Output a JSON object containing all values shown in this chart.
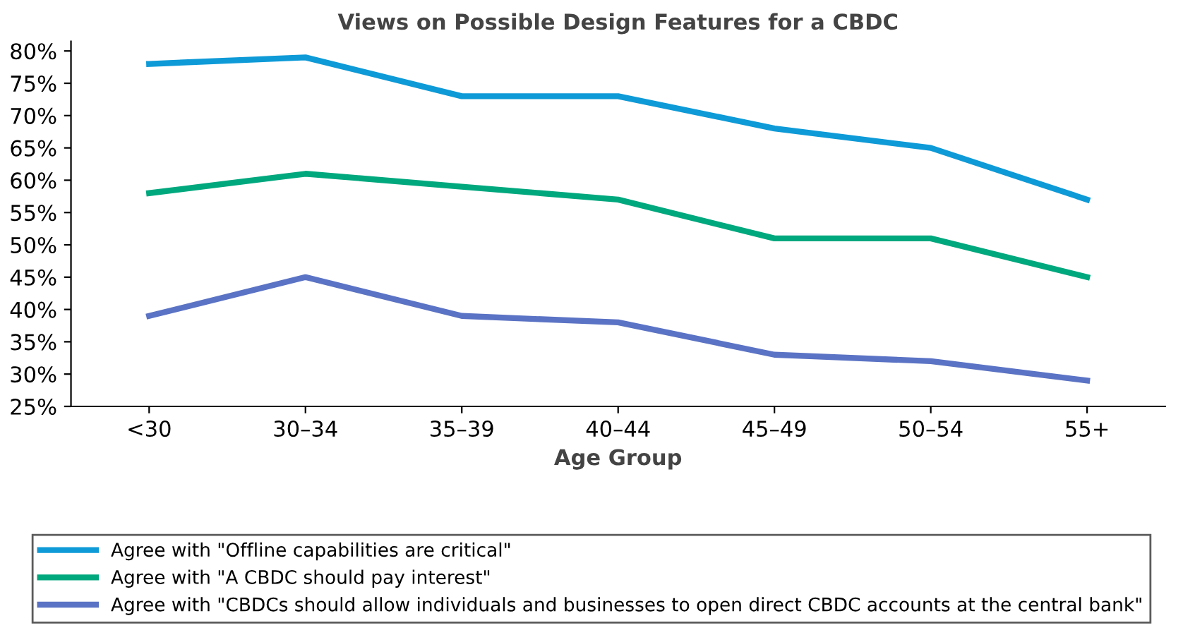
{
  "chart_data": {
    "type": "line",
    "title": "Views on Possible Design Features for a CBDC",
    "xlabel": "Age Group",
    "categories": [
      "<30",
      "30–34",
      "35–39",
      "40–44",
      "45–49",
      "50–54",
      "55+"
    ],
    "series": [
      {
        "name": "Agree with \"Offline capabilities are critical\"",
        "color": "#0e9ad7",
        "values": [
          78,
          79,
          73,
          73,
          68,
          65,
          57
        ]
      },
      {
        "name": "Agree with \"A CBDC should pay interest\"",
        "color": "#00a87e",
        "values": [
          58,
          61,
          59,
          57,
          51,
          51,
          45
        ]
      },
      {
        "name": "Agree with \"CBDCs should allow individuals and businesses to open direct CBDC accounts at the central bank\"",
        "color": "#5b73c4",
        "values": [
          39,
          45,
          39,
          38,
          33,
          32,
          29
        ]
      }
    ],
    "ylim": [
      25,
      81.5
    ],
    "yticks": [
      {
        "value": 25,
        "label": "25%"
      },
      {
        "value": 30,
        "label": "30%"
      },
      {
        "value": 35,
        "label": "35%"
      },
      {
        "value": 40,
        "label": "40%"
      },
      {
        "value": 45,
        "label": "45%"
      },
      {
        "value": 50,
        "label": "50%"
      },
      {
        "value": 55,
        "label": "55%"
      },
      {
        "value": 60,
        "label": "60%"
      },
      {
        "value": 65,
        "label": "65%"
      },
      {
        "value": 70,
        "label": "70%"
      },
      {
        "value": 75,
        "label": "75%"
      },
      {
        "value": 80,
        "label": "80%"
      }
    ],
    "grid": false,
    "legend": "bottom",
    "marker": "none",
    "line_style": "solid"
  }
}
